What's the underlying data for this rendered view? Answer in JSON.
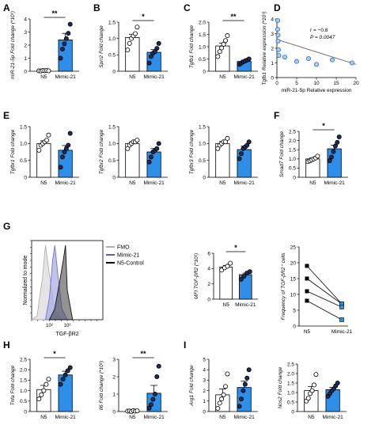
{
  "colors": {
    "blue": "#2f8fe8",
    "white": "#ffffff",
    "black": "#000000",
    "fmo": "#d7d7d7",
    "mimic": "#6f73c9",
    "n5control": "#777777"
  },
  "chart_data": [
    {
      "panel": "A",
      "type": "bar",
      "categories": [
        "N5",
        "Mimic-21"
      ],
      "values": [
        0.05,
        2.4
      ],
      "sem": [
        0.02,
        0.5
      ],
      "ylabel": "miR-21-5p Fold change (*10³)",
      "ylim": [
        0,
        4
      ],
      "yticks": [
        0,
        1,
        2,
        3,
        4
      ],
      "ytick_labels": [
        "0",
        "1",
        "2",
        "3",
        "4"
      ],
      "significance": "**",
      "points": [
        [
          0.03,
          0.02,
          0.05,
          0.04,
          0.06,
          0.03
        ],
        [
          1.0,
          1.7,
          2.1,
          2.5,
          2.9,
          3.6
        ]
      ]
    },
    {
      "panel": "B",
      "type": "bar",
      "categories": [
        "N5",
        "Mimic-21"
      ],
      "values": [
        1.03,
        0.58
      ],
      "sem": [
        0.1,
        0.08
      ],
      "ylabel": "Sprr2 Fold change",
      "ylim": [
        0,
        1.5
      ],
      "yticks": [
        0,
        0.5,
        1,
        1.5
      ],
      "ytick_labels": [
        "0",
        "0.5",
        "1.0",
        "1.5"
      ],
      "significance": "*",
      "points": [
        [
          0.65,
          0.85,
          1.0,
          1.08,
          1.15,
          1.35
        ],
        [
          0.25,
          0.45,
          0.55,
          0.6,
          0.7,
          0.85
        ]
      ]
    },
    {
      "panel": "C",
      "type": "bar",
      "categories": [
        "N5",
        "Mimic-21"
      ],
      "values": [
        1.03,
        0.4
      ],
      "sem": [
        0.12,
        0.05
      ],
      "ylabel": "Tgfb1 Fold change",
      "ylim": [
        0,
        2
      ],
      "yticks": [
        0,
        0.5,
        1,
        1.5,
        2
      ],
      "ytick_labels": [
        "0",
        "0.5",
        "1.0",
        "1.5",
        "2.0"
      ],
      "significance": "**",
      "points": [
        [
          0.6,
          0.8,
          0.95,
          1.1,
          1.25,
          1.45
        ],
        [
          0.28,
          0.33,
          0.38,
          0.42,
          0.45,
          0.5
        ]
      ]
    },
    {
      "panel": "D",
      "type": "scatter",
      "xlabel": "miR-21-5p Relative expression",
      "ylabel": "Tgfb1 Relative expression (*10³)",
      "xlim": [
        0,
        20
      ],
      "ylim": [
        0,
        4
      ],
      "xticks": [
        0,
        5,
        10,
        15,
        20
      ],
      "yticks": [
        0,
        1,
        2,
        3,
        4
      ],
      "annotations": [
        "r = −0.8",
        "P = 0.0047"
      ],
      "x": [
        0.2,
        0.2,
        0.3,
        0.3,
        0.4,
        0.5,
        2,
        5,
        8,
        10,
        14,
        19
      ],
      "y": [
        3.9,
        3.3,
        2.9,
        2.5,
        1.9,
        1.5,
        1.4,
        1.1,
        1.3,
        0.9,
        1.2,
        1.0
      ],
      "trendline": [
        [
          0,
          2.6
        ],
        [
          20,
          0.9
        ]
      ]
    },
    {
      "panel": "E1",
      "type": "bar",
      "categories": [
        "N5",
        "Mimic-21"
      ],
      "values": [
        1.0,
        0.8
      ],
      "sem": [
        0.08,
        0.14
      ],
      "ylabel": "Tgfbr1 Fold change",
      "ylim": [
        0,
        1.5
      ],
      "yticks": [
        0,
        0.5,
        1,
        1.5
      ],
      "ytick_labels": [
        "0",
        "0.5",
        "1.0",
        "1.5"
      ],
      "points": [
        [
          0.8,
          0.95,
          1.0,
          1.05,
          1.1,
          1.25
        ],
        [
          0.3,
          0.6,
          0.75,
          0.85,
          0.95,
          1.3
        ]
      ]
    },
    {
      "panel": "E2",
      "type": "bar",
      "categories": [
        "N5",
        "Mimic-21"
      ],
      "values": [
        1.0,
        0.75
      ],
      "sem": [
        0.05,
        0.1
      ],
      "ylabel": "Tgfbr2 Fold change",
      "ylim": [
        0,
        1.5
      ],
      "yticks": [
        0,
        0.5,
        1,
        1.5
      ],
      "ytick_labels": [
        "0",
        "0.5",
        "1.0",
        "1.5"
      ],
      "points": [
        [
          0.85,
          0.95,
          1.0,
          1.05,
          1.05,
          1.1
        ],
        [
          0.45,
          0.6,
          0.75,
          0.8,
          0.85,
          1.0
        ]
      ]
    },
    {
      "panel": "E3",
      "type": "bar",
      "categories": [
        "N5",
        "Mimic-21"
      ],
      "values": [
        1.0,
        0.82
      ],
      "sem": [
        0.06,
        0.1
      ],
      "ylabel": "Tgfbr3 Fold change",
      "ylim": [
        0,
        1.5
      ],
      "yticks": [
        0,
        0.5,
        1,
        1.5
      ],
      "ytick_labels": [
        "0",
        "0.5",
        "1.0",
        "1.5"
      ],
      "points": [
        [
          0.85,
          0.95,
          1.0,
          1.05,
          1.05,
          1.15
        ],
        [
          0.55,
          0.7,
          0.85,
          0.9,
          0.95,
          1.05
        ]
      ]
    },
    {
      "panel": "F",
      "type": "bar",
      "categories": [
        "N5",
        "Mimic-21"
      ],
      "values": [
        1.0,
        1.55
      ],
      "sem": [
        0.05,
        0.2
      ],
      "ylabel": "Smad7 Fold change",
      "ylim": [
        0,
        2.5
      ],
      "yticks": [
        0,
        0.5,
        1,
        1.5,
        2,
        2.5
      ],
      "ytick_labels": [
        "0",
        "0.5",
        "1.0",
        "1.5",
        "2.0",
        "2.5"
      ],
      "significance": "*",
      "points": [
        [
          0.85,
          0.9,
          0.95,
          1.0,
          1.05,
          1.15
        ],
        [
          0.9,
          1.1,
          1.4,
          1.7,
          1.9,
          2.2
        ]
      ]
    },
    {
      "panel": "G1",
      "type": "area",
      "xlabel": "TGF-βR2",
      "ylabel": "Normalized to mode",
      "legend": [
        "FMO",
        "Mimic-21",
        "N5-Control"
      ],
      "legend_position": "top-right",
      "x_scale": "log",
      "xlim": [
        10,
        100000
      ],
      "xtick_labels": [
        "10²",
        "10³"
      ],
      "series": [
        {
          "name": "FMO",
          "x": [
            10,
            20,
            40,
            60,
            100,
            200,
            500
          ],
          "y": [
            0,
            5,
            55,
            100,
            60,
            10,
            0
          ]
        },
        {
          "name": "Mimic-21",
          "x": [
            60,
            100,
            150,
            200,
            300,
            500,
            1000
          ],
          "y": [
            0,
            30,
            80,
            100,
            60,
            15,
            0
          ]
        },
        {
          "name": "N5-Control",
          "x": [
            100,
            200,
            400,
            600,
            800,
            1000,
            2000
          ],
          "y": [
            0,
            15,
            55,
            80,
            100,
            40,
            0
          ]
        }
      ]
    },
    {
      "panel": "G2",
      "type": "bar",
      "categories": [
        "N5",
        "Mimic-21"
      ],
      "values": [
        4.2,
        3.2
      ],
      "sem": [
        0.2,
        0.2
      ],
      "ylabel": "MFI TGF-βR2 (*10²)",
      "ylim": [
        0,
        6
      ],
      "yticks": [
        0,
        2,
        4,
        6
      ],
      "ytick_labels": [
        "0",
        "2",
        "4",
        "6"
      ],
      "significance": "*",
      "points": [
        [
          3.8,
          4.1,
          4.3,
          4.7
        ],
        [
          2.6,
          3.0,
          3.4,
          3.6
        ]
      ]
    },
    {
      "panel": "G3",
      "type": "line",
      "xlabel": "",
      "ylabel": "Frequency of TGF-βR2⁺ cells",
      "categories": [
        "N5",
        "Mimic-21"
      ],
      "ylim": [
        0,
        25
      ],
      "yticks": [
        0,
        5,
        10,
        15,
        20,
        25
      ],
      "pairs": [
        [
          19,
          7
        ],
        [
          15,
          7
        ],
        [
          11,
          6
        ],
        [
          8,
          2
        ]
      ]
    },
    {
      "panel": "H1",
      "type": "bar",
      "categories": [
        "N5",
        "Mimic-21"
      ],
      "values": [
        1.05,
        1.75
      ],
      "sem": [
        0.2,
        0.18
      ],
      "ylabel": "Tnfa Fold change",
      "ylim": [
        0,
        2.5
      ],
      "yticks": [
        0,
        0.5,
        1,
        1.5,
        2,
        2.5
      ],
      "ytick_labels": [
        "0",
        "0.5",
        "1.0",
        "1.5",
        "2.0",
        "2.5"
      ],
      "significance": "*",
      "points": [
        [
          0.6,
          0.8,
          1.0,
          1.3,
          1.55
        ],
        [
          1.3,
          1.55,
          1.75,
          1.95,
          2.1
        ]
      ]
    },
    {
      "panel": "H2",
      "type": "bar",
      "categories": [
        "N5",
        "Mimic-21"
      ],
      "values": [
        0.02,
        1.05
      ],
      "sem": [
        0.01,
        0.45
      ],
      "ylabel": "Il6 Fold change (*10²)",
      "ylim": [
        0,
        3
      ],
      "yticks": [
        0,
        1,
        2,
        3
      ],
      "ytick_labels": [
        "0",
        "1",
        "2",
        "3"
      ],
      "significance": "**",
      "points": [
        [
          0.02,
          0.03,
          0.0,
          0.05,
          0.02,
          0.04
        ],
        [
          0.2,
          0.4,
          0.7,
          1.0,
          2.0,
          2.6
        ]
      ]
    },
    {
      "panel": "I1",
      "type": "bar",
      "categories": [
        "N5",
        "Mimic-21"
      ],
      "values": [
        1.6,
        2.3
      ],
      "sem": [
        0.55,
        0.6
      ],
      "ylabel": "Arg1 Fold change",
      "ylim": [
        0,
        5
      ],
      "yticks": [
        0,
        1,
        2,
        3,
        4,
        5
      ],
      "ytick_labels": [
        "0",
        "1",
        "2",
        "3",
        "4",
        "5"
      ],
      "points": [
        [
          0.3,
          0.8,
          1.2,
          1.6,
          2.4,
          3.6
        ],
        [
          0.5,
          1.2,
          2.0,
          2.6,
          3.2,
          4.0
        ]
      ]
    },
    {
      "panel": "I2",
      "type": "bar",
      "categories": [
        "N5",
        "Mimic-21"
      ],
      "values": [
        1.1,
        1.15
      ],
      "sem": [
        0.22,
        0.12
      ],
      "ylabel": "Nos2 Fold change",
      "ylim": [
        0,
        2.5
      ],
      "yticks": [
        0,
        0.5,
        1,
        1.5,
        2,
        2.5
      ],
      "ytick_labels": [
        "0",
        "0.5",
        "1.0",
        "1.5",
        "2.0",
        "2.5"
      ],
      "points": [
        [
          0.55,
          0.7,
          0.95,
          1.1,
          1.4,
          1.95
        ],
        [
          0.8,
          0.95,
          1.1,
          1.2,
          1.35,
          1.5
        ]
      ]
    }
  ]
}
